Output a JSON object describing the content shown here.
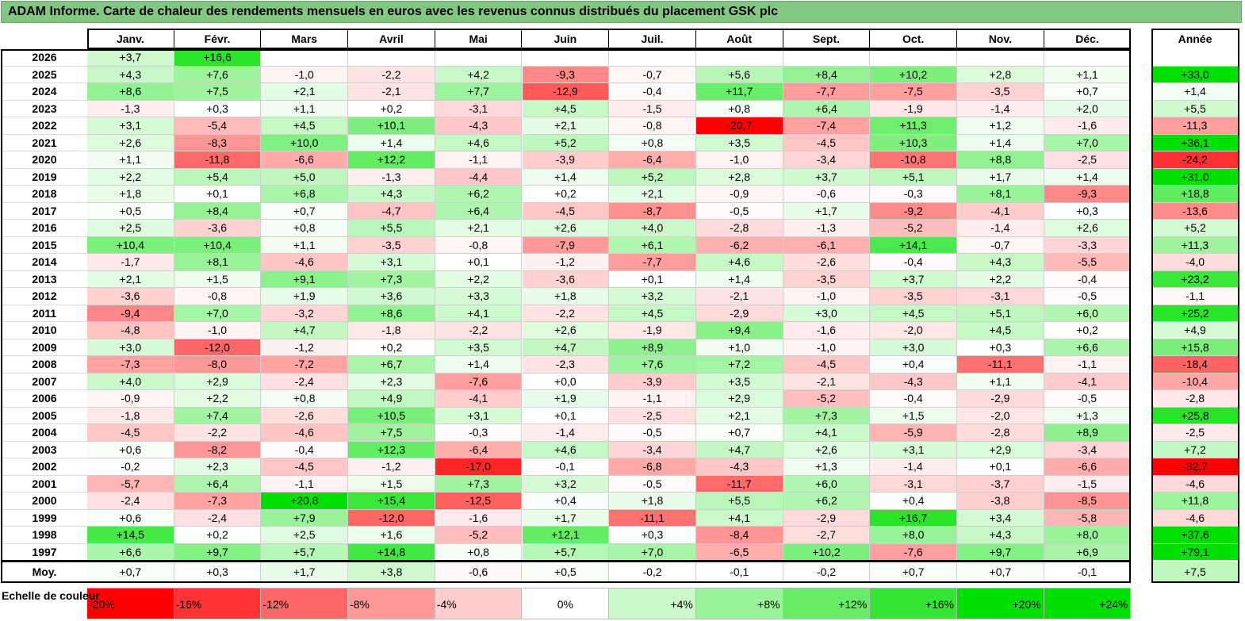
{
  "title": "ADAM Informe. Carte de chaleur des rendements mensuels en euros avec les revenus connus distribués du placement GSK plc",
  "colors": {
    "negative_max": "#ff0000",
    "positive_max": "#00e000",
    "zero": "#ffffff",
    "title_bg": "#82c882"
  },
  "chart_data": {
    "type": "heatmap",
    "title": "ADAM Informe. Carte de chaleur des rendements mensuels en euros avec les revenus connus distribués du placement GSK plc",
    "columns": [
      "Janv.",
      "Févr.",
      "Mars",
      "Avril",
      "Mai",
      "Juin",
      "Juil.",
      "Août",
      "Sept.",
      "Oct.",
      "Nov.",
      "Déc."
    ],
    "year_column_label": "Année",
    "rows": [
      {
        "year": "2026",
        "values": [
          "+3,7",
          "+16,6",
          "",
          "",
          "",
          "",
          "",
          "",
          "",
          "",
          "",
          ""
        ],
        "annual": ""
      },
      {
        "year": "2025",
        "values": [
          "+4,3",
          "+7,6",
          "-1,0",
          "-2,2",
          "+4,2",
          "-9,3",
          "-0,7",
          "+5,6",
          "+8,4",
          "+10,2",
          "+2,8",
          "+1,1"
        ],
        "annual": "+33,0"
      },
      {
        "year": "2024",
        "values": [
          "+8,6",
          "+7,5",
          "+2,1",
          "-2,1",
          "+7,7",
          "-12,9",
          "-0,4",
          "+11,7",
          "-7,7",
          "-7,5",
          "-3,5",
          "+0,7"
        ],
        "annual": "+1,4"
      },
      {
        "year": "2023",
        "values": [
          "-1,3",
          "+0,3",
          "+1,1",
          "+0,2",
          "-3,1",
          "+4,5",
          "-1,5",
          "+0,8",
          "+6,4",
          "-1,9",
          "-1,4",
          "+2,0"
        ],
        "annual": "+5,5"
      },
      {
        "year": "2022",
        "values": [
          "+3,1",
          "-5,4",
          "+4,5",
          "+10,1",
          "-4,3",
          "+2,1",
          "-0,8",
          "-20,7",
          "-7,4",
          "+11,3",
          "+1,2",
          "-1,6"
        ],
        "annual": "-11,3"
      },
      {
        "year": "2021",
        "values": [
          "+2,6",
          "-8,3",
          "+10,0",
          "+1,4",
          "+4,6",
          "+5,2",
          "+0,8",
          "+3,5",
          "-4,5",
          "+10,3",
          "+1,4",
          "+7,0"
        ],
        "annual": "+36,1"
      },
      {
        "year": "2020",
        "values": [
          "+1,1",
          "-11,8",
          "-6,6",
          "+12,2",
          "-1,1",
          "-3,9",
          "-6,4",
          "-1,0",
          "-3,4",
          "-10,8",
          "+8,8",
          "-2,5"
        ],
        "annual": "-24,2"
      },
      {
        "year": "2019",
        "values": [
          "+2,2",
          "+5,4",
          "+5,0",
          "-1,3",
          "-4,4",
          "+1,4",
          "+5,2",
          "+2,8",
          "+3,7",
          "+5,1",
          "+1,7",
          "+1,4"
        ],
        "annual": "+31,0"
      },
      {
        "year": "2018",
        "values": [
          "+1,8",
          "+0,1",
          "+6,8",
          "+4,3",
          "+6,2",
          "+0,2",
          "+2,1",
          "-0,9",
          "-0,6",
          "-0,3",
          "+8,1",
          "-9,3"
        ],
        "annual": "+18,8"
      },
      {
        "year": "2017",
        "values": [
          "+0,5",
          "+8,4",
          "+0,7",
          "-4,7",
          "+6,4",
          "-4,5",
          "-8,7",
          "-0,5",
          "+1,7",
          "-9,2",
          "-4,1",
          "+0,3"
        ],
        "annual": "-13,6"
      },
      {
        "year": "2016",
        "values": [
          "+2,5",
          "-3,6",
          "+0,8",
          "+5,5",
          "+2,1",
          "+2,6",
          "+4,0",
          "-2,8",
          "-1,3",
          "-5,2",
          "-1,4",
          "+2,6"
        ],
        "annual": "+5,2"
      },
      {
        "year": "2015",
        "values": [
          "+10,4",
          "+10,4",
          "+1,1",
          "-3,5",
          "-0,8",
          "-7,9",
          "+6,1",
          "-6,2",
          "-6,1",
          "+14,1",
          "-0,7",
          "-3,3"
        ],
        "annual": "+11,3"
      },
      {
        "year": "2014",
        "values": [
          "-1,7",
          "+8,1",
          "-4,6",
          "+3,1",
          "+0,1",
          "-1,2",
          "-7,7",
          "+4,6",
          "-2,6",
          "-0,4",
          "+4,3",
          "-5,5"
        ],
        "annual": "-4,0"
      },
      {
        "year": "2013",
        "values": [
          "+2,1",
          "+1,5",
          "+9,1",
          "+7,3",
          "+2,2",
          "-3,6",
          "+0,1",
          "+1,4",
          "-3,5",
          "+3,7",
          "+2,2",
          "-0,4"
        ],
        "annual": "+23,2"
      },
      {
        "year": "2012",
        "values": [
          "-3,6",
          "-0,8",
          "+1,9",
          "+3,6",
          "+3,3",
          "+1,8",
          "+3,2",
          "-2,1",
          "-1,0",
          "-3,5",
          "-3,1",
          "-0,5"
        ],
        "annual": "-1,1"
      },
      {
        "year": "2011",
        "values": [
          "-9,4",
          "+7,0",
          "-3,2",
          "+8,6",
          "+4,1",
          "-2,2",
          "+4,5",
          "-2,9",
          "+3,0",
          "+4,5",
          "+5,1",
          "+6,0"
        ],
        "annual": "+25,2"
      },
      {
        "year": "2010",
        "values": [
          "-4,8",
          "-1,0",
          "+4,7",
          "-1,8",
          "-2,2",
          "+2,6",
          "-1,9",
          "+9,4",
          "-1,6",
          "-2,0",
          "+4,5",
          "+0,2"
        ],
        "annual": "+4,9"
      },
      {
        "year": "2009",
        "values": [
          "+3,0",
          "-12,0",
          "-1,2",
          "+0,2",
          "+3,5",
          "+4,7",
          "+8,9",
          "+1,0",
          "-1,0",
          "+3,0",
          "+0,3",
          "+6,6"
        ],
        "annual": "+15,8"
      },
      {
        "year": "2008",
        "values": [
          "-7,3",
          "-8,0",
          "-7,2",
          "+6,7",
          "+1,4",
          "-2,3",
          "+7,6",
          "+7,2",
          "-4,5",
          "+0,4",
          "-11,1",
          "-1,1"
        ],
        "annual": "-18,4"
      },
      {
        "year": "2007",
        "values": [
          "+4,0",
          "+2,9",
          "-2,4",
          "+2,3",
          "-7,6",
          "+0,0",
          "-3,9",
          "+3,5",
          "-2,1",
          "-4,3",
          "+1,1",
          "-4,1"
        ],
        "annual": "-10,4"
      },
      {
        "year": "2006",
        "values": [
          "-0,9",
          "+2,2",
          "+0,8",
          "+4,9",
          "-4,1",
          "+1,9",
          "-1,1",
          "+2,9",
          "-5,2",
          "-0,4",
          "-2,9",
          "-0,5"
        ],
        "annual": "-2,8"
      },
      {
        "year": "2005",
        "values": [
          "-1,8",
          "+7,4",
          "-2,6",
          "+10,5",
          "+3,1",
          "+0,1",
          "-2,5",
          "+2,1",
          "+7,3",
          "+1,5",
          "-2,0",
          "+1,3"
        ],
        "annual": "+25,8"
      },
      {
        "year": "2004",
        "values": [
          "-4,5",
          "-2,2",
          "-4,6",
          "+7,5",
          "-0,3",
          "-1,4",
          "-0,5",
          "+0,7",
          "+4,1",
          "-5,9",
          "-2,8",
          "+8,9"
        ],
        "annual": "-2,5"
      },
      {
        "year": "2003",
        "values": [
          "+0,6",
          "-8,2",
          "-0,4",
          "+12,3",
          "-6,4",
          "+4,6",
          "-3,4",
          "+4,7",
          "+2,6",
          "+3,1",
          "+2,9",
          "-3,4"
        ],
        "annual": "+7,2"
      },
      {
        "year": "2002",
        "values": [
          "-0,2",
          "+2,3",
          "-4,5",
          "-1,2",
          "-17,0",
          "-0,1",
          "-6,8",
          "-4,3",
          "+1,3",
          "-1,4",
          "+0,1",
          "-6,6"
        ],
        "annual": "-32,7"
      },
      {
        "year": "2001",
        "values": [
          "-5,7",
          "+6,4",
          "-1,1",
          "+1,5",
          "+7,3",
          "+3,2",
          "-0,5",
          "-11,7",
          "+6,0",
          "-3,1",
          "-3,7",
          "-1,5"
        ],
        "annual": "-4,6"
      },
      {
        "year": "2000",
        "values": [
          "-2,4",
          "-7,3",
          "+20,8",
          "+15,4",
          "-12,5",
          "+0,4",
          "+1,8",
          "+5,5",
          "+6,2",
          "+0,4",
          "-3,8",
          "-8,5"
        ],
        "annual": "+11,8"
      },
      {
        "year": "1999",
        "values": [
          "+0,6",
          "-2,4",
          "+7,9",
          "-12,0",
          "-1,6",
          "+1,7",
          "-11,1",
          "+4,1",
          "-2,9",
          "+16,7",
          "+3,4",
          "-5,8"
        ],
        "annual": "-4,6"
      },
      {
        "year": "1998",
        "values": [
          "+14,5",
          "+0,2",
          "+2,5",
          "+1,6",
          "-5,2",
          "+12,1",
          "+0,3",
          "-8,4",
          "-2,7",
          "+8,0",
          "+4,3",
          "+8,0"
        ],
        "annual": "+37,6"
      },
      {
        "year": "1997",
        "values": [
          "+6,6",
          "+9,7",
          "+5,7",
          "+14,8",
          "+0,8",
          "+5,7",
          "+7,0",
          "-6,5",
          "+10,2",
          "-7,6",
          "+9,7",
          "+6,9"
        ],
        "annual": "+79,1"
      }
    ],
    "average_row": {
      "label": "Moy.",
      "values": [
        "+0,7",
        "+0,3",
        "+1,7",
        "+3,8",
        "-0,6",
        "+0,5",
        "-0,2",
        "-0,1",
        "-0,2",
        "+0,7",
        "+0,7",
        "-0,1"
      ],
      "annual": "+7,5"
    },
    "scale": {
      "label": "Echelle de couleur",
      "steps": [
        "-20%",
        "-16%",
        "-12%",
        "-8%",
        "-4%",
        "0%",
        "+4%",
        "+8%",
        "+12%",
        "+16%",
        "+20%",
        "+24%"
      ]
    }
  }
}
